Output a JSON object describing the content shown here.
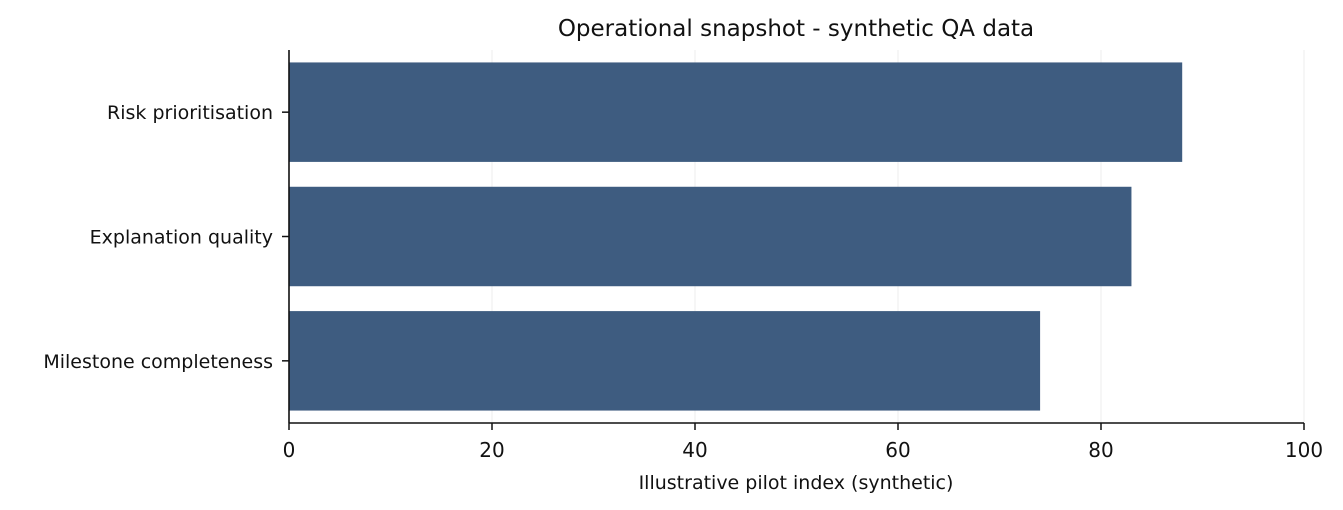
{
  "chart_data": {
    "type": "bar",
    "orientation": "horizontal",
    "title": "Operational snapshot - synthetic QA data",
    "xlabel": "Illustrative pilot index (synthetic)",
    "ylabel": "",
    "categories": [
      "Risk prioritisation",
      "Explanation quality",
      "Milestone completeness"
    ],
    "values": [
      88,
      83,
      74
    ],
    "xlim": [
      0,
      100
    ],
    "xticks": [
      "0",
      "20",
      "40",
      "60",
      "80",
      "100"
    ],
    "grid": "vertical",
    "legend": "none",
    "colors": {
      "bar": "#3e5c80",
      "grid": "#ececec",
      "axis": "#111111"
    }
  }
}
